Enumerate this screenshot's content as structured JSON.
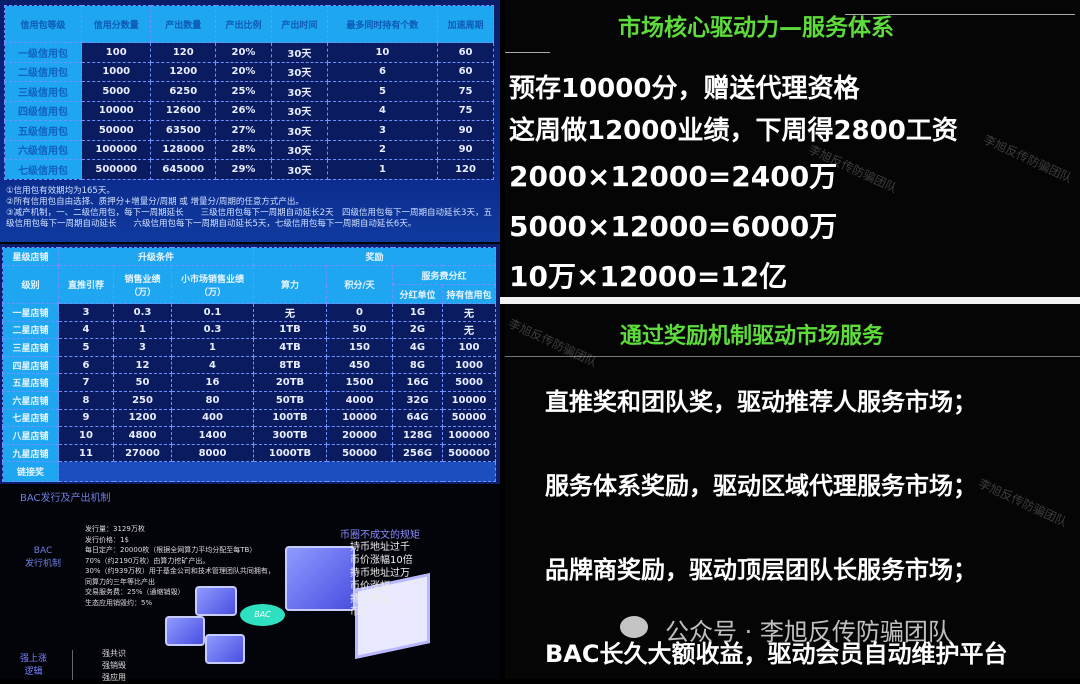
{
  "credit_table": {
    "headers": [
      "信用包等级",
      "信用分数量",
      "产出数量",
      "产出比例",
      "产出时间",
      "最多同时持有个数",
      "加速周期"
    ],
    "rows": [
      [
        "一级信用包",
        "100",
        "120",
        "20%",
        "30天",
        "10",
        "60"
      ],
      [
        "二级信用包",
        "1000",
        "1200",
        "20%",
        "30天",
        "6",
        "60"
      ],
      [
        "三级信用包",
        "5000",
        "6250",
        "25%",
        "30天",
        "5",
        "75"
      ],
      [
        "四级信用包",
        "10000",
        "12600",
        "26%",
        "30天",
        "4",
        "75"
      ],
      [
        "五级信用包",
        "50000",
        "63500",
        "27%",
        "30天",
        "3",
        "90"
      ],
      [
        "六级信用包",
        "100000",
        "128000",
        "28%",
        "30天",
        "2",
        "90"
      ],
      [
        "七级信用包",
        "500000",
        "645000",
        "29%",
        "30天",
        "1",
        "120"
      ]
    ],
    "notes": [
      "①信用包有效期均为165天。",
      "②所有信用包自由选择、质押分+增量分/周期 或 增量分/周期的任意方式产出。",
      "③减产机制，一、二级信用包，每下一周期延长　　三级信用包每下一周期自动延长2天　四级信用包每下一周期自动延长3天，五级信用包每下一周期自动延长　　六级信用包每下一周期自动延长5天，七级信用包每下一周期自动延长6天。"
    ]
  },
  "store_table": {
    "top_headers": [
      "星级店铺",
      "升级条件",
      "奖励"
    ],
    "sub_headers": [
      "级别",
      "直推引荐",
      "销售业绩（万）",
      "小市场销售业绩（万）",
      "算力",
      "积分/天",
      "服务费分红"
    ],
    "dividend_headers": [
      "分红单位",
      "持有信用包"
    ],
    "rows": [
      [
        "一星店铺",
        "3",
        "0.3",
        "0.1",
        "无",
        "0",
        "1G",
        "无"
      ],
      [
        "二星店铺",
        "4",
        "1",
        "0.3",
        "1TB",
        "50",
        "2G",
        "无"
      ],
      [
        "三星店铺",
        "5",
        "3",
        "1",
        "4TB",
        "150",
        "4G",
        "100"
      ],
      [
        "四星店铺",
        "6",
        "12",
        "4",
        "8TB",
        "450",
        "8G",
        "1000"
      ],
      [
        "五星店铺",
        "7",
        "50",
        "16",
        "20TB",
        "1500",
        "16G",
        "5000"
      ],
      [
        "六星店铺",
        "8",
        "250",
        "80",
        "50TB",
        "4000",
        "32G",
        "10000"
      ],
      [
        "七星店铺",
        "9",
        "1200",
        "400",
        "100TB",
        "10000",
        "64G",
        "50000"
      ],
      [
        "八星店铺",
        "10",
        "4800",
        "1400",
        "300TB",
        "20000",
        "128G",
        "100000"
      ],
      [
        "九星店铺",
        "11",
        "27000",
        "8000",
        "1000TB",
        "50000",
        "256G",
        "500000"
      ]
    ],
    "footer_label": "链接奖"
  },
  "bac": {
    "title": "BAC发行及产出机制",
    "side_label": "BAC\n发行机制",
    "lines": [
      "发行量：3129万枚",
      "发行价格：1$",
      "每日定产：20000枚（根据全网算力平均分配至每TB）",
      "70%（约2190万枚）由算力挖矿产出。",
      "30%（约939万枚）用于基金公司和技术管理团队共同拥有，",
      "同算力的三年等比产出",
      "交易服务费：25%（通缩销毁）",
      "生态应用销毁约：5%"
    ],
    "coin_label": "BAC",
    "rules_title": "币圈不成文的规矩",
    "rules": [
      "持币地址过千",
      "币价涨幅10倍",
      "持币地址过万",
      "币价涨幅",
      "持币地址",
      "币价　　一万"
    ],
    "logic_label": "强上涨\n逻辑",
    "logic_items": [
      "强共识",
      "强销毁",
      "强应用"
    ]
  },
  "slide1": {
    "title": "市场核心驱动力—服务体系",
    "lines": [
      "预存10000分，赠送代理资格",
      "这周做12000业绩，下周得2800工资",
      "2000×12000=2400万",
      "5000×12000=6000万",
      "10万×12000=12亿"
    ]
  },
  "slide2": {
    "title": "通过奖励机制驱动市场服务",
    "lines": [
      "直推奖和团队奖，驱动推荐人服务市场；",
      "服务体系奖励，驱动区域代理服务市场；",
      "品牌商奖励，驱动顶层团队长服务市场；",
      "BAC长久大额收益，驱动会员自动维护平台"
    ]
  },
  "watermark": {
    "text": "李旭反传防骗团队",
    "account": "公众号 · 李旭反传防骗团队",
    "icon": "wechat-icon"
  },
  "colors": {
    "table_header": "#1fa6f0",
    "table_body": "#0a1b60",
    "slide_title": "#5ddc3c"
  }
}
